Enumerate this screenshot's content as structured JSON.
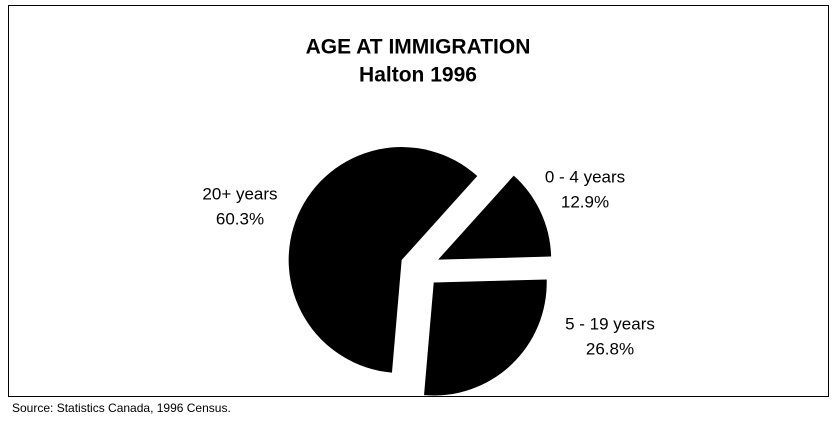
{
  "chart_data": {
    "type": "pie",
    "title": "AGE AT IMMIGRATION",
    "subtitle": "Halton 1996",
    "categories": [
      "0 - 4 years",
      "5 - 19 years",
      "20+ years"
    ],
    "values": [
      12.9,
      26.8,
      60.3
    ],
    "value_labels": [
      "12.9%",
      "26.8%",
      "60.3%"
    ],
    "color": "#000000",
    "source": "Source: Statistics Canada, 1996 Census."
  }
}
